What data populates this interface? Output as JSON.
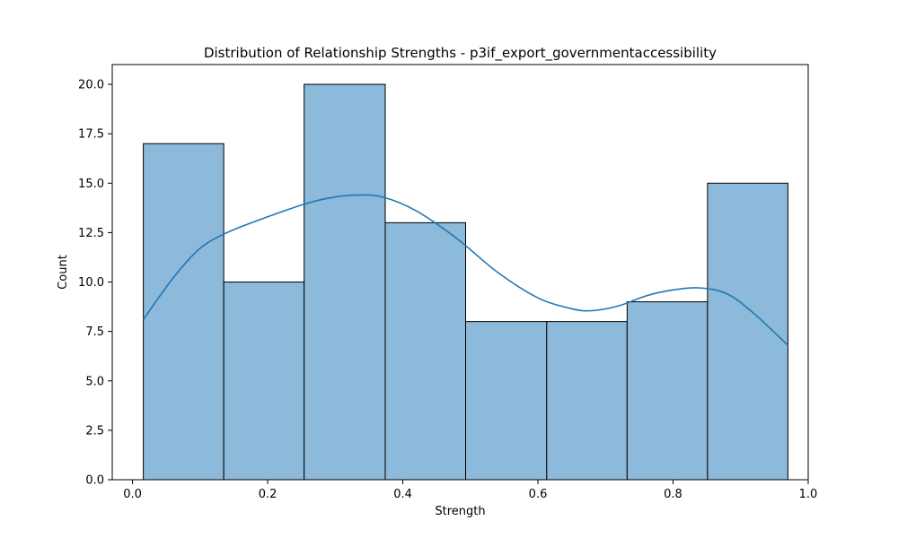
{
  "chart_data": {
    "type": "bar",
    "title": "Distribution of Relationship Strengths - p3if_export_governmentaccessibility",
    "xlabel": "Strength",
    "ylabel": "Count",
    "xlim": [
      -0.03,
      1.0
    ],
    "ylim": [
      0,
      21
    ],
    "bin_edges": [
      0.016,
      0.135,
      0.254,
      0.374,
      0.493,
      0.613,
      0.732,
      0.851,
      0.97
    ],
    "values": [
      17,
      10,
      20,
      13,
      8,
      8,
      9,
      15
    ],
    "kde": {
      "x": [
        0.016,
        0.06,
        0.1,
        0.14,
        0.2,
        0.26,
        0.3,
        0.33,
        0.37,
        0.42,
        0.48,
        0.54,
        0.6,
        0.65,
        0.68,
        0.72,
        0.76,
        0.8,
        0.84,
        0.88,
        0.92,
        0.97
      ],
      "y": [
        8.1,
        10.2,
        11.7,
        12.5,
        13.3,
        14.0,
        14.3,
        14.4,
        14.3,
        13.6,
        12.2,
        10.5,
        9.2,
        8.65,
        8.55,
        8.8,
        9.3,
        9.6,
        9.7,
        9.4,
        8.4,
        6.8
      ]
    },
    "x_ticks": [
      0.0,
      0.2,
      0.4,
      0.6,
      0.8,
      1.0
    ],
    "x_tick_labels": [
      "0.0",
      "0.2",
      "0.4",
      "0.6",
      "0.8",
      "1.0"
    ],
    "y_ticks": [
      0,
      2.5,
      5,
      7.5,
      10,
      12.5,
      15,
      17.5,
      20
    ],
    "y_tick_labels": [
      "0.0",
      "2.5",
      "5.0",
      "7.5",
      "10.0",
      "12.5",
      "15.0",
      "17.5",
      "20.0"
    ],
    "grid": false,
    "colors": {
      "bar_fill": "#8db9da",
      "bar_edge": "#000000",
      "kde_line": "#1f77b4"
    }
  }
}
